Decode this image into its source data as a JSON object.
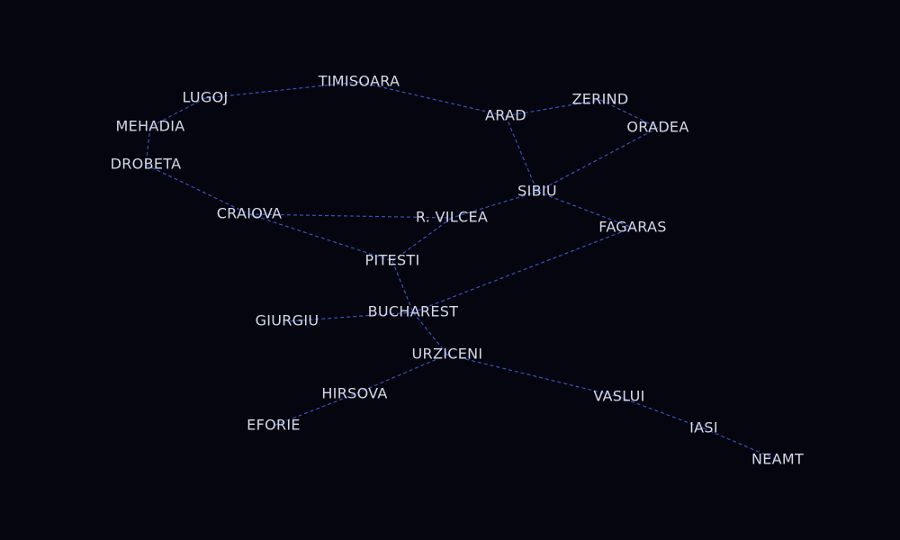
{
  "colors": {
    "background": "#05050f",
    "edge": "#3a52b8",
    "label": "#d6d9ea"
  },
  "cities": [
    {
      "id": "timisoara",
      "name": "TIMISOARA"
    },
    {
      "id": "lugoj",
      "name": "LUGOJ"
    },
    {
      "id": "mehadia",
      "name": "MEHADIA"
    },
    {
      "id": "drobeta",
      "name": "DROBETA"
    },
    {
      "id": "craiova",
      "name": "CRAIOVA"
    },
    {
      "id": "arad",
      "name": "ARAD"
    },
    {
      "id": "zerind",
      "name": "ZERIND"
    },
    {
      "id": "oradea",
      "name": "ORADEA"
    },
    {
      "id": "sibiu",
      "name": "SIBIU"
    },
    {
      "id": "rvilcea",
      "name": "R. VILCEA"
    },
    {
      "id": "fagaras",
      "name": "FAGARAS"
    },
    {
      "id": "pitesti",
      "name": "PITESTI"
    },
    {
      "id": "bucharest",
      "name": "BUCHAREST"
    },
    {
      "id": "giurgiu",
      "name": "GIURGIU"
    },
    {
      "id": "urziceni",
      "name": "URZICENI"
    },
    {
      "id": "hirsova",
      "name": "HIRSOVA"
    },
    {
      "id": "eforie",
      "name": "EFORIE"
    },
    {
      "id": "vaslui",
      "name": "VASLUI"
    },
    {
      "id": "iasi",
      "name": "IASI"
    },
    {
      "id": "neamt",
      "name": "NEAMT"
    }
  ],
  "roads": [
    [
      "lugoj",
      "timisoara"
    ],
    [
      "timisoara",
      "arad"
    ],
    [
      "lugoj",
      "mehadia"
    ],
    [
      "mehadia",
      "drobeta"
    ],
    [
      "drobeta",
      "craiova"
    ],
    [
      "arad",
      "zerind"
    ],
    [
      "zerind",
      "oradea"
    ],
    [
      "arad",
      "sibiu"
    ],
    [
      "oradea",
      "sibiu"
    ],
    [
      "sibiu",
      "rvilcea"
    ],
    [
      "sibiu",
      "fagaras"
    ],
    [
      "craiova",
      "rvilcea"
    ],
    [
      "craiova",
      "pitesti"
    ],
    [
      "rvilcea",
      "pitesti"
    ],
    [
      "pitesti",
      "bucharest"
    ],
    [
      "fagaras",
      "bucharest"
    ],
    [
      "bucharest",
      "giurgiu"
    ],
    [
      "bucharest",
      "urziceni"
    ],
    [
      "urziceni",
      "hirsova"
    ],
    [
      "hirsova",
      "eforie"
    ],
    [
      "urziceni",
      "vaslui"
    ],
    [
      "vaslui",
      "iasi"
    ],
    [
      "iasi",
      "neamt"
    ]
  ]
}
